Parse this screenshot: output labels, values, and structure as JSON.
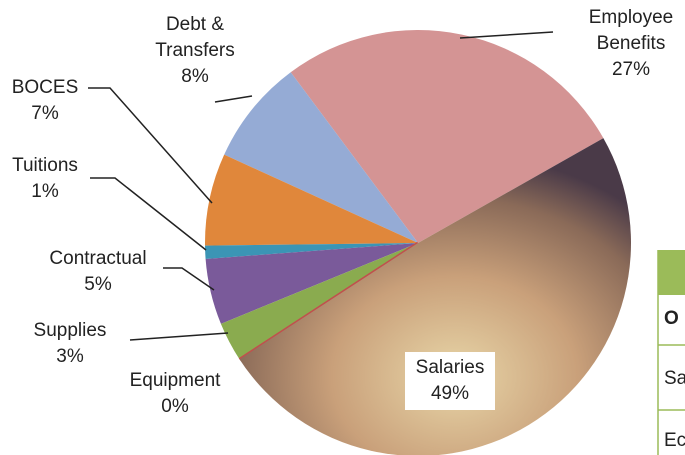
{
  "chart_data": {
    "type": "pie",
    "categories": [
      "Employee Benefits",
      "Debt & Transfers",
      "BOCES",
      "Tuitions",
      "Contractual",
      "Supplies",
      "Equipment",
      "Salaries"
    ],
    "values": [
      27,
      8,
      7,
      1,
      5,
      3,
      0,
      49
    ],
    "value_labels": [
      "27%",
      "8%",
      "7%",
      "1%",
      "5%",
      "3%",
      "0%",
      "49%"
    ],
    "colors": [
      "#d49494",
      "#95abd5",
      "#e0873b",
      "#3b95b5",
      "#7a5a9a",
      "#8aab4f",
      "#c0504d",
      "#b08a6a"
    ]
  },
  "table": {
    "header": "O",
    "rows": [
      "Sa",
      "Ec"
    ]
  }
}
